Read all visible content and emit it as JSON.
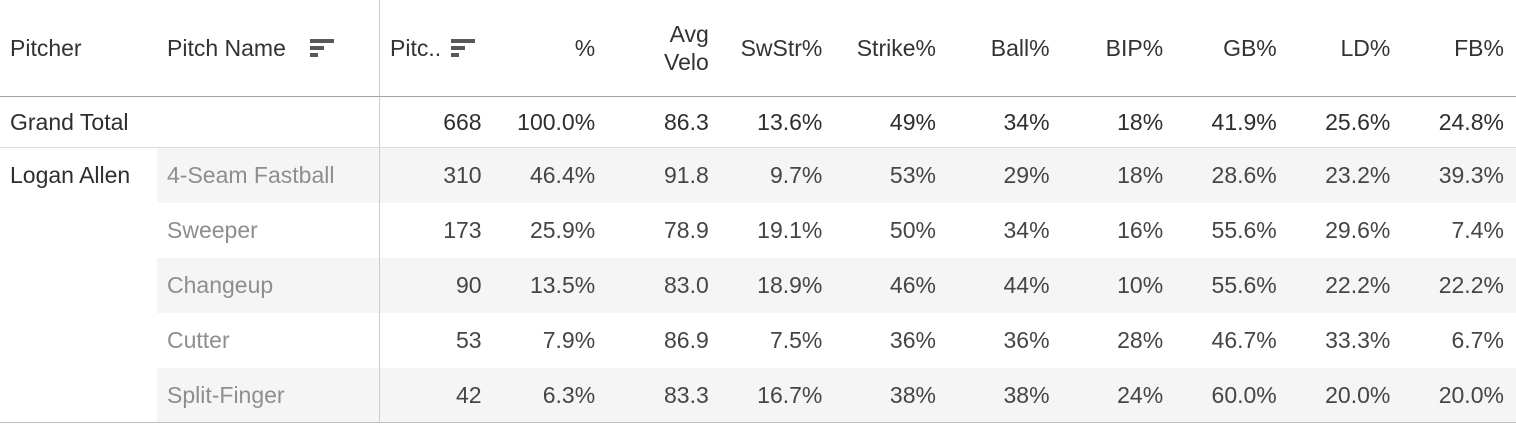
{
  "table": {
    "columns": [
      {
        "id": "pitcher",
        "label": "Pitcher",
        "align": "left",
        "sort_icon": false
      },
      {
        "id": "pitch-name",
        "label": "Pitch Name",
        "align": "left",
        "sort_icon": true
      },
      {
        "id": "pitches",
        "label": "Pitc..",
        "align": "left",
        "sort_icon": true
      },
      {
        "id": "pct",
        "label": "%",
        "align": "right",
        "sort_icon": false
      },
      {
        "id": "avg-velo",
        "label": "Avg\nVelo",
        "align": "right",
        "sort_icon": false
      },
      {
        "id": "swstr-pct",
        "label": "SwStr%",
        "align": "right",
        "sort_icon": false
      },
      {
        "id": "strike-pct",
        "label": "Strike%",
        "align": "right",
        "sort_icon": false
      },
      {
        "id": "ball-pct",
        "label": "Ball%",
        "align": "right",
        "sort_icon": false
      },
      {
        "id": "bip-pct",
        "label": "BIP%",
        "align": "right",
        "sort_icon": false
      },
      {
        "id": "gb-pct",
        "label": "GB%",
        "align": "right",
        "sort_icon": false
      },
      {
        "id": "ld-pct",
        "label": "LD%",
        "align": "right",
        "sort_icon": false
      },
      {
        "id": "fb-pct",
        "label": "FB%",
        "align": "right",
        "sort_icon": false
      }
    ],
    "grand_total": {
      "label": "Grand Total",
      "values": [
        "668",
        "100.0%",
        "86.3",
        "13.6%",
        "49%",
        "34%",
        "18%",
        "41.9%",
        "25.6%",
        "24.8%"
      ]
    },
    "rows": [
      {
        "pitcher": "Logan Allen",
        "pitch": "4-Seam Fastball",
        "shaded": true,
        "values": [
          "310",
          "46.4%",
          "91.8",
          "9.7%",
          "53%",
          "29%",
          "18%",
          "28.6%",
          "23.2%",
          "39.3%"
        ]
      },
      {
        "pitcher": "",
        "pitch": "Sweeper",
        "shaded": false,
        "values": [
          "173",
          "25.9%",
          "78.9",
          "19.1%",
          "50%",
          "34%",
          "16%",
          "55.6%",
          "29.6%",
          "7.4%"
        ]
      },
      {
        "pitcher": "",
        "pitch": "Changeup",
        "shaded": true,
        "values": [
          "90",
          "13.5%",
          "83.0",
          "18.9%",
          "46%",
          "44%",
          "10%",
          "55.6%",
          "22.2%",
          "22.2%"
        ]
      },
      {
        "pitcher": "",
        "pitch": "Cutter",
        "shaded": false,
        "values": [
          "53",
          "7.9%",
          "86.9",
          "7.5%",
          "36%",
          "36%",
          "28%",
          "46.7%",
          "33.3%",
          "6.7%"
        ]
      },
      {
        "pitcher": "",
        "pitch": "Split-Finger",
        "shaded": true,
        "values": [
          "42",
          "6.3%",
          "83.3",
          "16.7%",
          "38%",
          "38%",
          "24%",
          "60.0%",
          "20.0%",
          "20.0%"
        ]
      }
    ]
  },
  "icons": {
    "sort_descending": "sort-descending-icon"
  },
  "colors": {
    "banding": "#f5f5f5",
    "divider": "#cbcbcb",
    "header_rule": "#a3a3a3",
    "grand_total_rule": "#dadada",
    "bottom_rule": "#bfbfbf",
    "header_text": "#333333",
    "total_text": "#2e2e2e",
    "value_text": "#454545",
    "pitch_name_text": "#8e8e8e"
  },
  "chart_data": {
    "type": "table",
    "columns": [
      "Pitcher",
      "Pitch Name",
      "Pitc..",
      "%",
      "Avg Velo",
      "SwStr%",
      "Strike%",
      "Ball%",
      "BIP%",
      "GB%",
      "LD%",
      "FB%"
    ],
    "rows": [
      [
        "Grand Total",
        "",
        668,
        "100.0%",
        86.3,
        "13.6%",
        "49%",
        "34%",
        "18%",
        "41.9%",
        "25.6%",
        "24.8%"
      ],
      [
        "Logan Allen",
        "4-Seam Fastball",
        310,
        "46.4%",
        91.8,
        "9.7%",
        "53%",
        "29%",
        "18%",
        "28.6%",
        "23.2%",
        "39.3%"
      ],
      [
        "Logan Allen",
        "Sweeper",
        173,
        "25.9%",
        78.9,
        "19.1%",
        "50%",
        "34%",
        "16%",
        "55.6%",
        "29.6%",
        "7.4%"
      ],
      [
        "Logan Allen",
        "Changeup",
        90,
        "13.5%",
        83.0,
        "18.9%",
        "46%",
        "44%",
        "10%",
        "55.6%",
        "22.2%",
        "22.2%"
      ],
      [
        "Logan Allen",
        "Cutter",
        53,
        "7.9%",
        86.9,
        "7.5%",
        "36%",
        "36%",
        "28%",
        "46.7%",
        "33.3%",
        "6.7%"
      ],
      [
        "Logan Allen",
        "Split-Finger",
        42,
        "6.3%",
        83.3,
        "16.7%",
        "38%",
        "38%",
        "24%",
        "60.0%",
        "20.0%",
        "20.0%"
      ]
    ],
    "layout_hints": {
      "sorted_columns": [
        "Pitch Name",
        "Pitc.."
      ],
      "banding": true,
      "grand_total_position": "top"
    }
  }
}
